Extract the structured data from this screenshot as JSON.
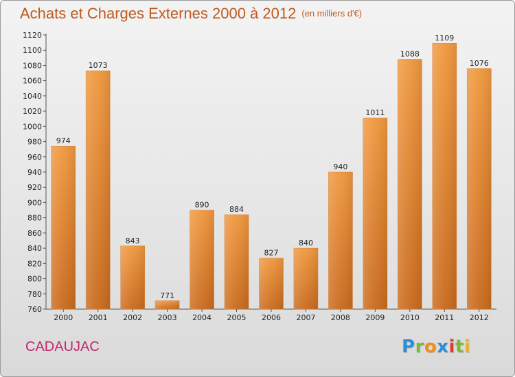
{
  "chart_data": {
    "type": "bar",
    "title": "Achats et Charges Externes 2000 à 2012",
    "subtitle": "(en milliers d'€)",
    "categories": [
      "2000",
      "2001",
      "2002",
      "2003",
      "2004",
      "2005",
      "2006",
      "2007",
      "2008",
      "2009",
      "2010",
      "2011",
      "2012"
    ],
    "values": [
      974,
      1073,
      843,
      771,
      890,
      884,
      827,
      840,
      940,
      1011,
      1088,
      1109,
      1076
    ],
    "xlabel": "",
    "ylabel": "",
    "ylim": [
      760,
      1120
    ],
    "ytick_step": 20,
    "grid": false,
    "legend": "none",
    "bar_color": "#f0983e",
    "bar_color_dark": "#c96a1d"
  },
  "colors": {
    "title": "#bf5a1e",
    "city": "#c0266e"
  },
  "footer": {
    "city": "CADAUJAC"
  },
  "logo": {
    "letters": [
      {
        "ch": "P",
        "color": "#2b8fd6"
      },
      {
        "ch": "r",
        "color": "#7cb83b"
      },
      {
        "ch": "o",
        "color": "#f28c1e"
      },
      {
        "ch": "x",
        "color": "#2b8fd6"
      },
      {
        "ch": "i",
        "color": "#e23a2e"
      },
      {
        "ch": "t",
        "color": "#7cb83b"
      },
      {
        "ch": "i",
        "color": "#f2b01e"
      }
    ]
  }
}
